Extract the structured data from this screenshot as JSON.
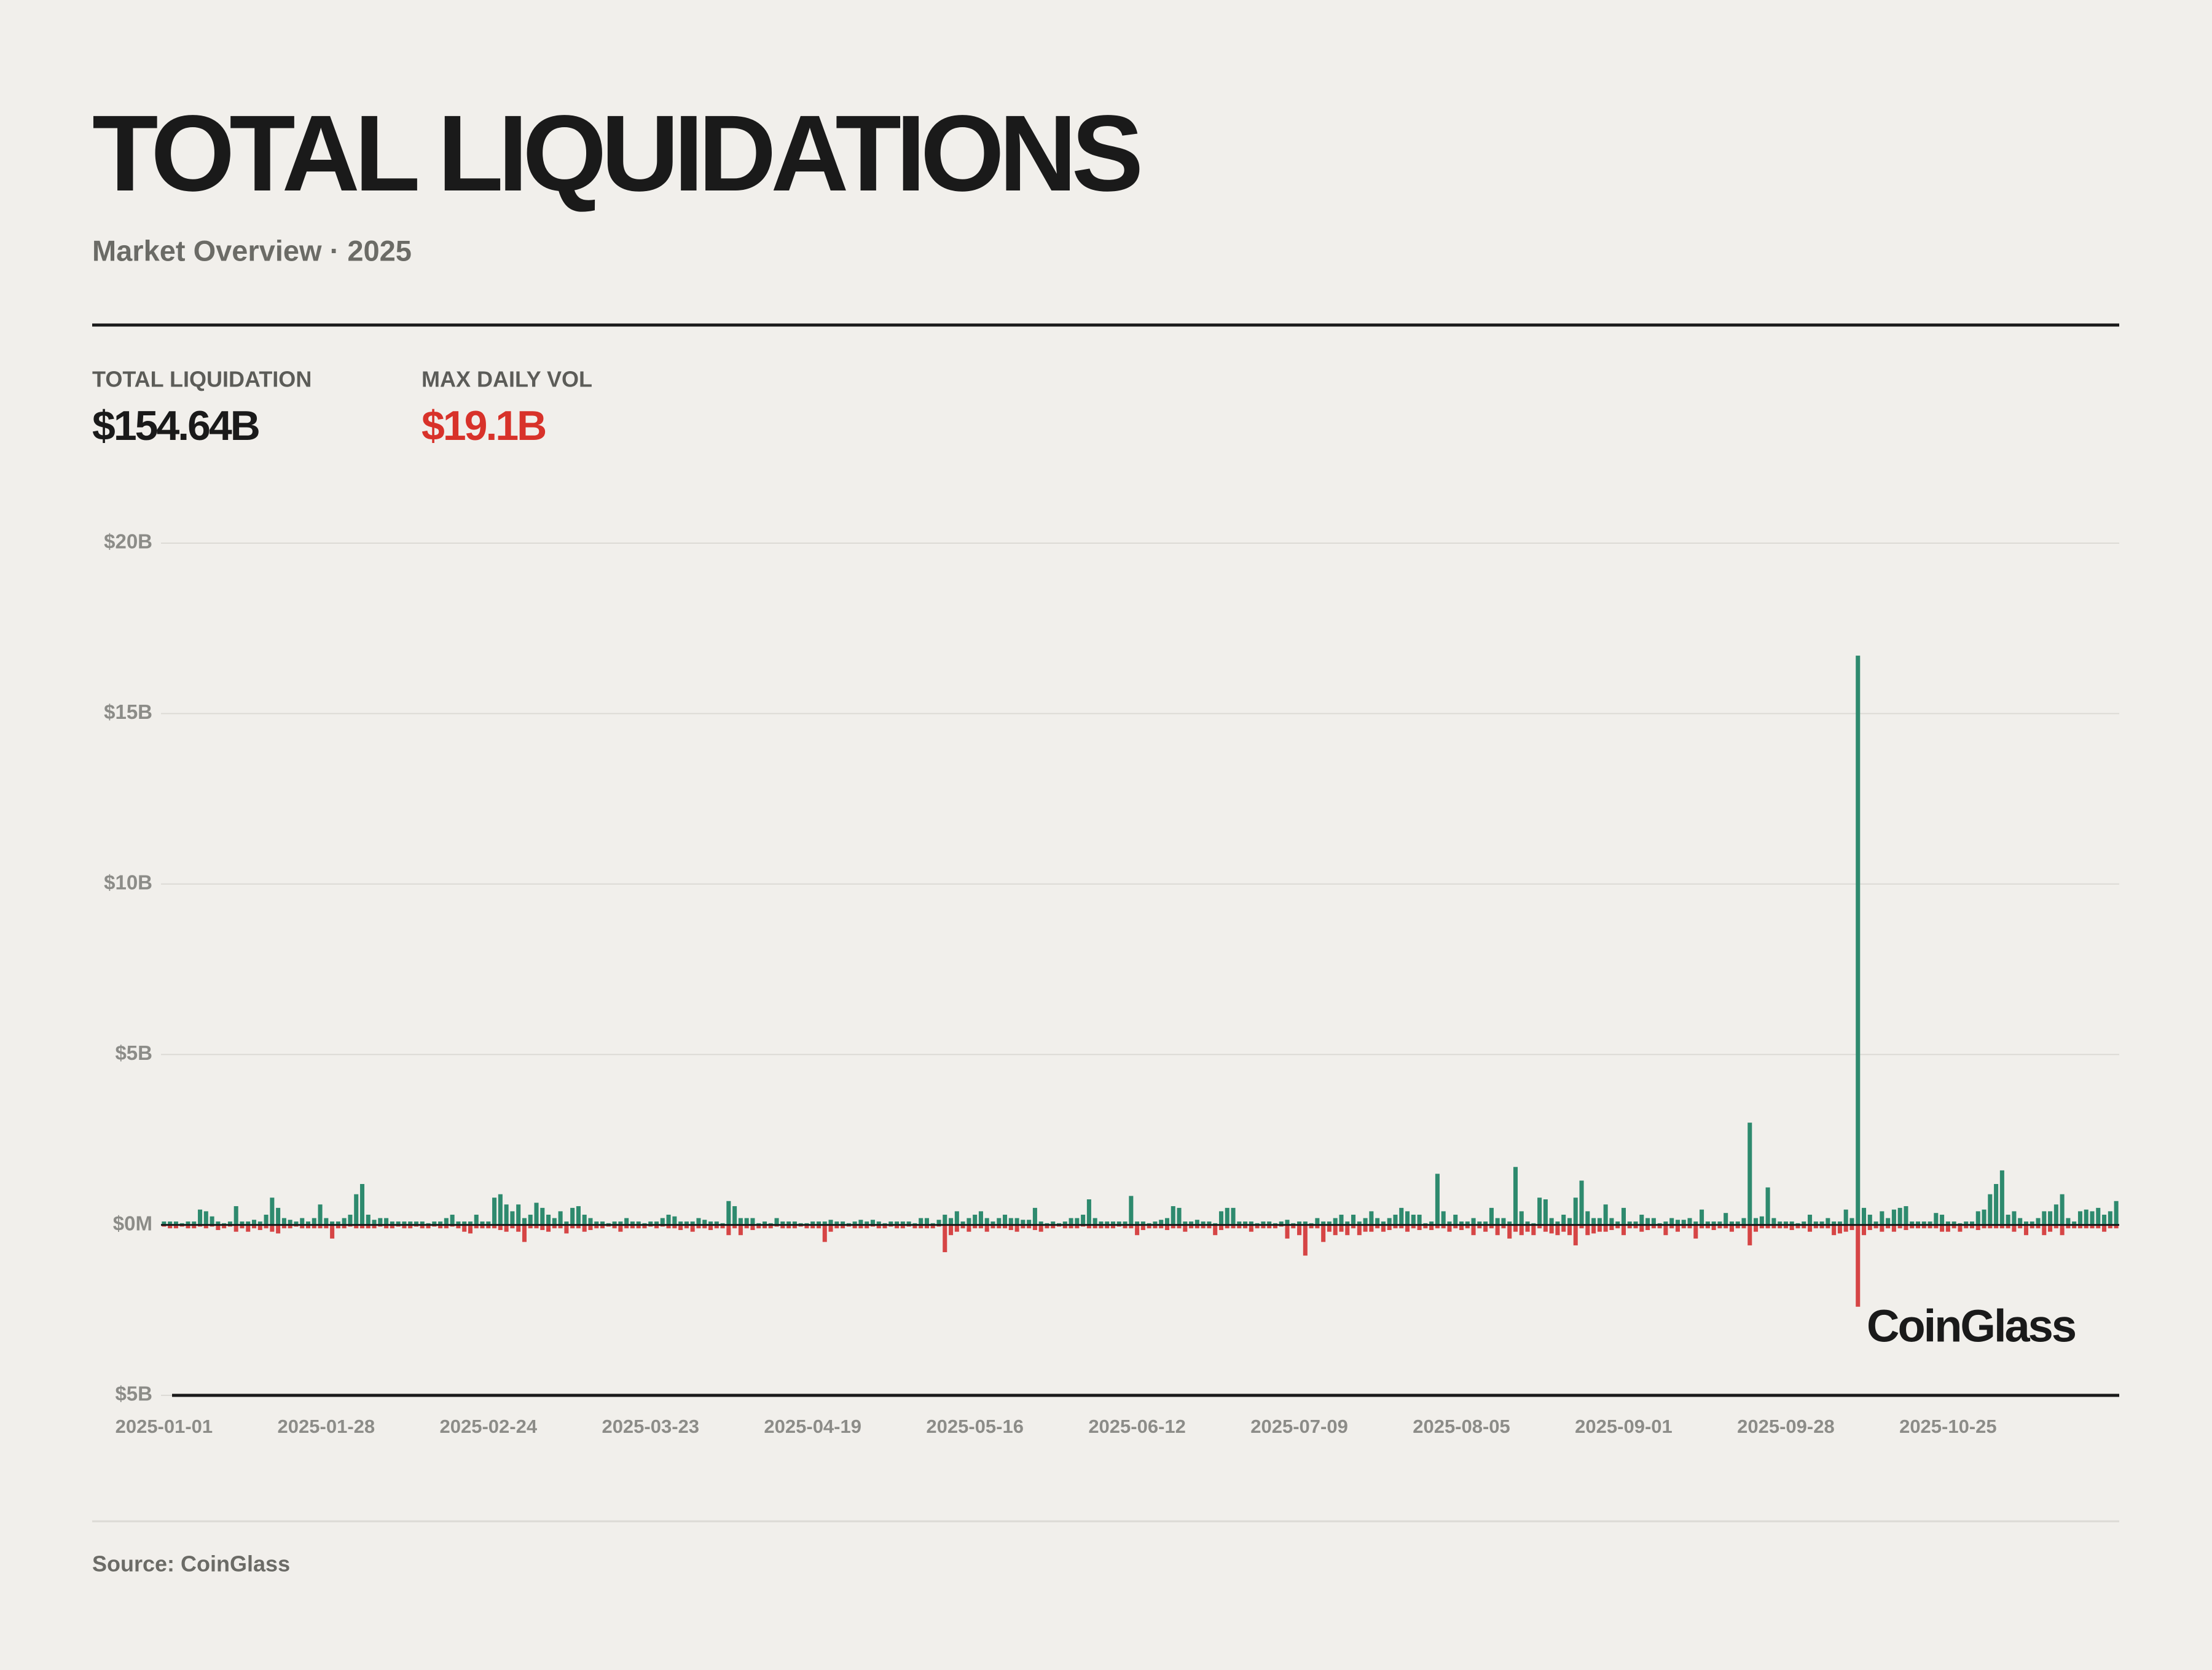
{
  "header": {
    "title": "TOTAL LIQUIDATIONS",
    "subtitle": "Market Overview · 2025"
  },
  "stats": [
    {
      "label": "TOTAL LIQUIDATION",
      "value": "$154.64B"
    },
    {
      "label": "MAX DAILY VOL",
      "value": "$19.1B"
    }
  ],
  "watermark": "CoinGlass",
  "source": "Source: CoinGlass",
  "chart_data": {
    "type": "bar",
    "grid": true,
    "ylim": [
      -5,
      20
    ],
    "yticks": [
      {
        "value": -5,
        "label": "$5B"
      },
      {
        "value": 0,
        "label": "$0M"
      },
      {
        "value": 5,
        "label": "$5B"
      },
      {
        "value": 10,
        "label": "$10B"
      },
      {
        "value": 15,
        "label": "$15B"
      },
      {
        "value": 20,
        "label": "$20B"
      }
    ],
    "categories": [
      "2025-01-01",
      null,
      null,
      null,
      null,
      null,
      null,
      null,
      null,
      null,
      null,
      null,
      null,
      null,
      null,
      null,
      null,
      null,
      null,
      null,
      null,
      null,
      null,
      null,
      null,
      null,
      null,
      "2025-01-28",
      null,
      null,
      null,
      null,
      null,
      null,
      null,
      null,
      null,
      null,
      null,
      null,
      null,
      null,
      null,
      null,
      null,
      null,
      null,
      null,
      null,
      null,
      null,
      null,
      null,
      null,
      "2025-02-24",
      null,
      null,
      null,
      null,
      null,
      null,
      null,
      null,
      null,
      null,
      null,
      null,
      null,
      null,
      null,
      null,
      null,
      null,
      null,
      null,
      null,
      null,
      null,
      null,
      null,
      null,
      "2025-03-23",
      null,
      null,
      null,
      null,
      null,
      null,
      null,
      null,
      null,
      null,
      null,
      null,
      null,
      null,
      null,
      null,
      null,
      null,
      null,
      null,
      null,
      null,
      null,
      null,
      null,
      null,
      "2025-04-19",
      null,
      null,
      null,
      null,
      null,
      null,
      null,
      null,
      null,
      null,
      null,
      null,
      null,
      null,
      null,
      null,
      null,
      null,
      null,
      null,
      null,
      null,
      null,
      null,
      null,
      null,
      "2025-05-16",
      null,
      null,
      null,
      null,
      null,
      null,
      null,
      null,
      null,
      null,
      null,
      null,
      null,
      null,
      null,
      null,
      null,
      null,
      null,
      null,
      null,
      null,
      null,
      null,
      null,
      null,
      "2025-06-12",
      null,
      null,
      null,
      null,
      null,
      null,
      null,
      null,
      null,
      null,
      null,
      null,
      null,
      null,
      null,
      null,
      null,
      null,
      null,
      null,
      null,
      null,
      null,
      null,
      null,
      null,
      "2025-07-09",
      null,
      null,
      null,
      null,
      null,
      null,
      null,
      null,
      null,
      null,
      null,
      null,
      null,
      null,
      null,
      null,
      null,
      null,
      null,
      null,
      null,
      null,
      null,
      null,
      null,
      null,
      "2025-08-05",
      null,
      null,
      null,
      null,
      null,
      null,
      null,
      null,
      null,
      null,
      null,
      null,
      null,
      null,
      null,
      null,
      null,
      null,
      null,
      null,
      null,
      null,
      null,
      null,
      null,
      null,
      "2025-09-01",
      null,
      null,
      null,
      null,
      null,
      null,
      null,
      null,
      null,
      null,
      null,
      null,
      null,
      null,
      null,
      null,
      null,
      null,
      null,
      null,
      null,
      null,
      null,
      null,
      null,
      null,
      "2025-09-28",
      null,
      null,
      null,
      null,
      null,
      null,
      null,
      null,
      null,
      null,
      null,
      null,
      null,
      null,
      null,
      null,
      null,
      null,
      null,
      null,
      null,
      null,
      null,
      null,
      null,
      null,
      "2025-10-25",
      null,
      null,
      null,
      null,
      null,
      null,
      null,
      null,
      null,
      null,
      null,
      null,
      null,
      null,
      null,
      null,
      null,
      null,
      null,
      null,
      null,
      null,
      null,
      null,
      null,
      null,
      null,
      null
    ],
    "series": [
      {
        "color": "#2e8a6e",
        "values": [
          0.1,
          0.1,
          0.1,
          0.05,
          0.1,
          0.1,
          0.45,
          0.4,
          0.25,
          0.1,
          0.05,
          0.1,
          0.55,
          0.1,
          0.1,
          0.15,
          0.1,
          0.3,
          0.8,
          0.5,
          0.2,
          0.15,
          0.1,
          0.2,
          0.1,
          0.2,
          0.6,
          0.2,
          0.1,
          0.1,
          0.2,
          0.3,
          0.9,
          1.2,
          0.3,
          0.15,
          0.2,
          0.2,
          0.1,
          0.1,
          0.1,
          0.1,
          0.1,
          0.1,
          0.05,
          0.1,
          0.1,
          0.2,
          0.3,
          0.1,
          0.1,
          0.1,
          0.3,
          0.1,
          0.1,
          0.8,
          0.9,
          0.6,
          0.4,
          0.6,
          0.2,
          0.3,
          0.65,
          0.5,
          0.3,
          0.2,
          0.4,
          0.1,
          0.5,
          0.55,
          0.3,
          0.2,
          0.1,
          0.1,
          0.05,
          0.1,
          0.1,
          0.2,
          0.1,
          0.1,
          0.05,
          0.1,
          0.1,
          0.2,
          0.3,
          0.25,
          0.1,
          0.1,
          0.1,
          0.2,
          0.15,
          0.1,
          0.1,
          0.05,
          0.7,
          0.55,
          0.2,
          0.2,
          0.2,
          0.05,
          0.1,
          0.05,
          0.2,
          0.1,
          0.1,
          0.1,
          0.05,
          0.05,
          0.1,
          0.1,
          0.1,
          0.15,
          0.1,
          0.1,
          0.05,
          0.1,
          0.15,
          0.1,
          0.15,
          0.1,
          0.05,
          0.1,
          0.1,
          0.1,
          0.1,
          0.05,
          0.2,
          0.2,
          0.05,
          0.15,
          0.3,
          0.2,
          0.4,
          0.1,
          0.2,
          0.3,
          0.4,
          0.2,
          0.1,
          0.2,
          0.3,
          0.2,
          0.2,
          0.15,
          0.15,
          0.5,
          0.1,
          0.05,
          0.1,
          0.05,
          0.1,
          0.2,
          0.2,
          0.3,
          0.75,
          0.2,
          0.1,
          0.1,
          0.1,
          0.1,
          0.1,
          0.85,
          0.1,
          0.1,
          0.05,
          0.1,
          0.15,
          0.2,
          0.55,
          0.5,
          0.1,
          0.1,
          0.15,
          0.1,
          0.1,
          0.05,
          0.4,
          0.5,
          0.5,
          0.1,
          0.1,
          0.1,
          0.05,
          0.1,
          0.1,
          0.05,
          0.1,
          0.15,
          0.05,
          0.1,
          0.1,
          0.05,
          0.2,
          0.1,
          0.1,
          0.2,
          0.3,
          0.1,
          0.3,
          0.1,
          0.2,
          0.4,
          0.2,
          0.1,
          0.2,
          0.3,
          0.5,
          0.4,
          0.3,
          0.3,
          0.05,
          0.1,
          1.5,
          0.4,
          0.1,
          0.3,
          0.1,
          0.1,
          0.2,
          0.1,
          0.1,
          0.5,
          0.2,
          0.2,
          0.1,
          1.7,
          0.4,
          0.1,
          0.05,
          0.8,
          0.75,
          0.2,
          0.1,
          0.3,
          0.2,
          0.8,
          1.3,
          0.4,
          0.2,
          0.2,
          0.6,
          0.2,
          0.1,
          0.5,
          0.1,
          0.1,
          0.3,
          0.2,
          0.2,
          0.05,
          0.1,
          0.2,
          0.15,
          0.15,
          0.2,
          0.1,
          0.45,
          0.1,
          0.1,
          0.1,
          0.35,
          0.1,
          0.1,
          0.2,
          3.0,
          0.2,
          0.25,
          1.1,
          0.2,
          0.1,
          0.1,
          0.1,
          0.05,
          0.1,
          0.3,
          0.1,
          0.1,
          0.2,
          0.1,
          0.1,
          0.45,
          0.2,
          16.7,
          0.5,
          0.3,
          0.1,
          0.4,
          0.2,
          0.45,
          0.5,
          0.55,
          0.1,
          0.1,
          0.1,
          0.1,
          0.35,
          0.3,
          0.1,
          0.1,
          0.05,
          0.1,
          0.1,
          0.4,
          0.45,
          0.9,
          1.2,
          1.6,
          0.3,
          0.4,
          0.2,
          0.1,
          0.1,
          0.2,
          0.4,
          0.4,
          0.6,
          0.9,
          0.2,
          0.1,
          0.4,
          0.45,
          0.4,
          0.5,
          0.3,
          0.4,
          0.7
        ]
      },
      {
        "color": "#d64545",
        "values": [
          -0.05,
          -0.1,
          -0.1,
          -0.05,
          -0.1,
          -0.1,
          -0.05,
          -0.1,
          -0.05,
          -0.15,
          -0.1,
          -0.05,
          -0.2,
          -0.1,
          -0.2,
          -0.1,
          -0.15,
          -0.1,
          -0.2,
          -0.25,
          -0.1,
          -0.1,
          -0.05,
          -0.1,
          -0.1,
          -0.1,
          -0.1,
          -0.1,
          -0.4,
          -0.1,
          -0.1,
          -0.05,
          -0.1,
          -0.1,
          -0.1,
          -0.1,
          -0.05,
          -0.1,
          -0.1,
          -0.05,
          -0.1,
          -0.1,
          -0.05,
          -0.1,
          -0.1,
          -0.05,
          -0.1,
          -0.1,
          -0.05,
          -0.1,
          -0.2,
          -0.25,
          -0.1,
          -0.1,
          -0.1,
          -0.1,
          -0.15,
          -0.2,
          -0.1,
          -0.2,
          -0.5,
          -0.1,
          -0.1,
          -0.15,
          -0.2,
          -0.1,
          -0.1,
          -0.25,
          -0.1,
          -0.1,
          -0.2,
          -0.15,
          -0.1,
          -0.1,
          -0.05,
          -0.1,
          -0.2,
          -0.1,
          -0.1,
          -0.1,
          -0.1,
          -0.05,
          -0.1,
          -0.05,
          -0.1,
          -0.1,
          -0.15,
          -0.1,
          -0.2,
          -0.1,
          -0.1,
          -0.15,
          -0.1,
          -0.1,
          -0.3,
          -0.1,
          -0.3,
          -0.1,
          -0.15,
          -0.1,
          -0.1,
          -0.1,
          -0.05,
          -0.1,
          -0.1,
          -0.1,
          -0.05,
          -0.1,
          -0.1,
          -0.1,
          -0.5,
          -0.2,
          -0.1,
          -0.1,
          -0.05,
          -0.1,
          -0.1,
          -0.1,
          -0.05,
          -0.1,
          -0.1,
          -0.05,
          -0.1,
          -0.1,
          -0.05,
          -0.1,
          -0.1,
          -0.1,
          -0.1,
          -0.05,
          -0.8,
          -0.3,
          -0.2,
          -0.1,
          -0.2,
          -0.1,
          -0.1,
          -0.2,
          -0.1,
          -0.1,
          -0.1,
          -0.15,
          -0.2,
          -0.1,
          -0.1,
          -0.15,
          -0.2,
          -0.1,
          -0.1,
          -0.05,
          -0.1,
          -0.1,
          -0.1,
          -0.05,
          -0.1,
          -0.1,
          -0.1,
          -0.1,
          -0.1,
          -0.05,
          -0.1,
          -0.1,
          -0.3,
          -0.15,
          -0.1,
          -0.1,
          -0.1,
          -0.15,
          -0.1,
          -0.1,
          -0.2,
          -0.1,
          -0.1,
          -0.1,
          -0.1,
          -0.3,
          -0.15,
          -0.1,
          -0.1,
          -0.1,
          -0.1,
          -0.2,
          -0.1,
          -0.1,
          -0.1,
          -0.1,
          -0.05,
          -0.4,
          -0.1,
          -0.3,
          -0.9,
          -0.1,
          -0.1,
          -0.5,
          -0.2,
          -0.3,
          -0.2,
          -0.3,
          -0.1,
          -0.3,
          -0.2,
          -0.2,
          -0.1,
          -0.2,
          -0.15,
          -0.1,
          -0.1,
          -0.2,
          -0.1,
          -0.15,
          -0.1,
          -0.15,
          -0.1,
          -0.1,
          -0.2,
          -0.1,
          -0.15,
          -0.1,
          -0.3,
          -0.1,
          -0.2,
          -0.1,
          -0.3,
          -0.1,
          -0.4,
          -0.2,
          -0.3,
          -0.2,
          -0.3,
          -0.1,
          -0.2,
          -0.25,
          -0.3,
          -0.2,
          -0.3,
          -0.6,
          -0.1,
          -0.3,
          -0.25,
          -0.2,
          -0.2,
          -0.15,
          -0.1,
          -0.3,
          -0.1,
          -0.1,
          -0.2,
          -0.15,
          -0.1,
          -0.1,
          -0.3,
          -0.1,
          -0.2,
          -0.1,
          -0.1,
          -0.4,
          -0.1,
          -0.1,
          -0.15,
          -0.1,
          -0.1,
          -0.2,
          -0.1,
          -0.1,
          -0.6,
          -0.2,
          -0.1,
          -0.1,
          -0.1,
          -0.1,
          -0.1,
          -0.15,
          -0.1,
          -0.1,
          -0.2,
          -0.1,
          -0.1,
          -0.1,
          -0.3,
          -0.25,
          -0.2,
          -0.15,
          -2.4,
          -0.3,
          -0.15,
          -0.1,
          -0.2,
          -0.1,
          -0.2,
          -0.1,
          -0.15,
          -0.1,
          -0.1,
          -0.1,
          -0.1,
          -0.1,
          -0.2,
          -0.2,
          -0.1,
          -0.2,
          -0.1,
          -0.1,
          -0.15,
          -0.1,
          -0.1,
          -0.1,
          -0.1,
          -0.1,
          -0.2,
          -0.1,
          -0.3,
          -0.1,
          -0.1,
          -0.3,
          -0.2,
          -0.1,
          -0.3,
          -0.1,
          -0.1,
          -0.1,
          -0.1,
          -0.1,
          -0.1,
          -0.2,
          -0.1,
          -0.1
        ]
      }
    ]
  }
}
